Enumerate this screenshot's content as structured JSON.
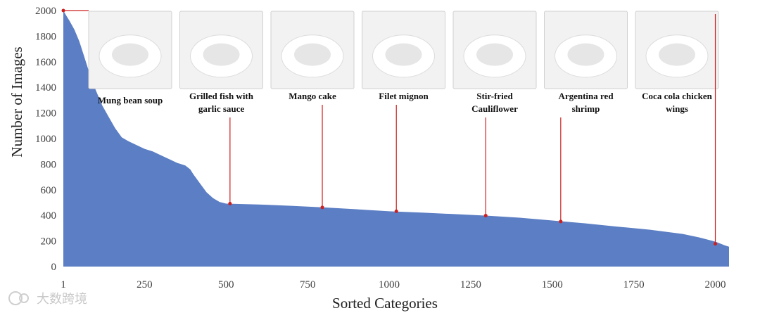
{
  "chart_data": {
    "type": "area",
    "ylabel": "Number of Images",
    "xlabel": "Sorted Categories",
    "xlim": [
      1,
      2042
    ],
    "ylim": [
      0,
      2000
    ],
    "x_ticks": [
      1,
      250,
      500,
      750,
      1000,
      1250,
      1500,
      1750,
      2000
    ],
    "y_ticks": [
      0,
      200,
      400,
      600,
      800,
      1000,
      1200,
      1400,
      1600,
      1800,
      2000
    ],
    "grid": false,
    "series": [
      {
        "color": "#5b7ec4",
        "points": [
          [
            1,
            2000
          ],
          [
            10,
            1960
          ],
          [
            20,
            1920
          ],
          [
            35,
            1850
          ],
          [
            50,
            1760
          ],
          [
            65,
            1640
          ],
          [
            80,
            1520
          ],
          [
            100,
            1380
          ],
          [
            120,
            1260
          ],
          [
            140,
            1170
          ],
          [
            160,
            1080
          ],
          [
            180,
            1010
          ],
          [
            200,
            980
          ],
          [
            225,
            950
          ],
          [
            250,
            920
          ],
          [
            275,
            900
          ],
          [
            300,
            870
          ],
          [
            325,
            840
          ],
          [
            350,
            810
          ],
          [
            375,
            790
          ],
          [
            390,
            760
          ],
          [
            400,
            720
          ],
          [
            420,
            650
          ],
          [
            440,
            580
          ],
          [
            460,
            535
          ],
          [
            480,
            505
          ],
          [
            500,
            492
          ],
          [
            520,
            490
          ],
          [
            600,
            485
          ],
          [
            700,
            475
          ],
          [
            800,
            462
          ],
          [
            900,
            448
          ],
          [
            1000,
            432
          ],
          [
            1100,
            422
          ],
          [
            1200,
            410
          ],
          [
            1300,
            398
          ],
          [
            1400,
            382
          ],
          [
            1500,
            360
          ],
          [
            1600,
            338
          ],
          [
            1700,
            312
          ],
          [
            1800,
            288
          ],
          [
            1900,
            255
          ],
          [
            1950,
            228
          ],
          [
            2000,
            195
          ],
          [
            2030,
            165
          ],
          [
            2042,
            155
          ]
        ]
      }
    ],
    "annotations": [
      {
        "label": [
          "Mung bean soup"
        ],
        "x": 1,
        "y": 2000,
        "color": "#cc1f1f"
      },
      {
        "label": [
          "Grilled fish with",
          "garlic sauce"
        ],
        "x": 512,
        "y": 492,
        "color": "#cc1f1f"
      },
      {
        "label": [
          "Mango cake"
        ],
        "x": 795,
        "y": 462,
        "color": "#cc1f1f"
      },
      {
        "label": [
          "Filet mignon"
        ],
        "x": 1022,
        "y": 432,
        "color": "#cc1f1f"
      },
      {
        "label": [
          "Stir-fried",
          "Cauliflower"
        ],
        "x": 1296,
        "y": 398,
        "color": "#cc1f1f"
      },
      {
        "label": [
          "Argentina red",
          "shrimp"
        ],
        "x": 1526,
        "y": 352,
        "color": "#cc1f1f"
      },
      {
        "label": [
          "Coca cola chicken",
          "wings"
        ],
        "x": 2000,
        "y": 178,
        "color": "#cc1f1f"
      }
    ]
  },
  "watermark": "大数跨境"
}
